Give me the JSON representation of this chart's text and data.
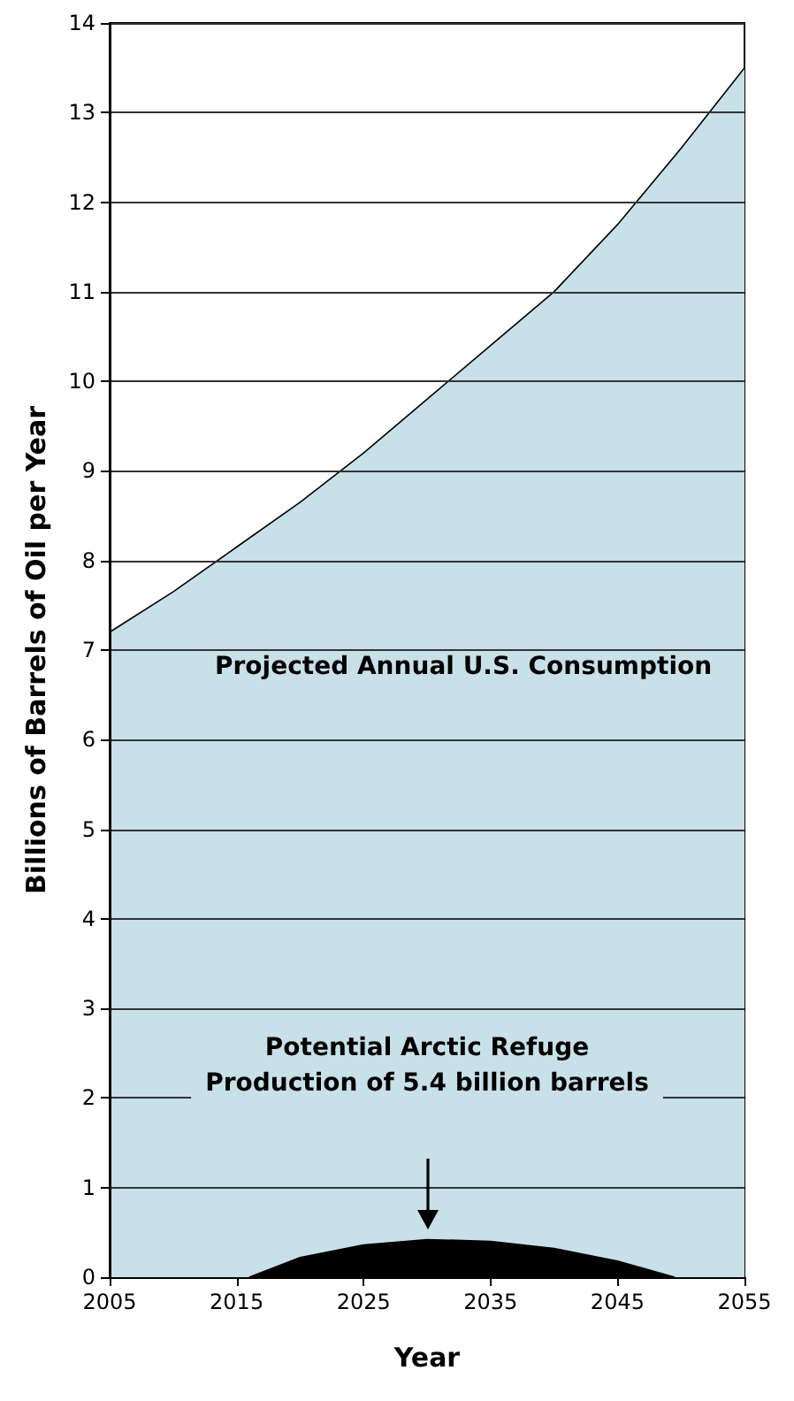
{
  "chart_data": {
    "type": "area",
    "xlabel": "Year",
    "ylabel": "Billions of Barrels of Oil per Year",
    "series": [
      {
        "color": "#c8e0e8",
        "x": [
          2005,
          2010,
          2015,
          2020,
          2025,
          2030,
          2035,
          2040,
          2045,
          2050,
          2055
        ],
        "values": [
          7.2,
          7.65,
          8.15,
          8.65,
          9.2,
          9.8,
          10.4,
          11.0,
          11.75,
          12.6,
          13.5
        ]
      },
      {
        "color": "#000000",
        "x": [
          2016,
          2020,
          2025,
          2030,
          2035,
          2040,
          2045,
          2049.5
        ],
        "values": [
          0,
          0.22,
          0.36,
          0.42,
          0.4,
          0.32,
          0.18,
          0
        ]
      }
    ],
    "annotations": [
      "Projected Annual U.S. Consumption",
      "Potential Arctic Refuge\nProduction of 5.4 billion barrels"
    ],
    "xlim": [
      2005,
      2055
    ],
    "xticks": [
      2005,
      2015,
      2025,
      2035,
      2045,
      2055
    ],
    "ylim": [
      0,
      14
    ],
    "yticks": [
      0,
      1,
      2,
      3,
      4,
      5,
      6,
      7,
      8,
      9,
      10,
      11,
      12,
      13,
      14
    ],
    "grid": "y"
  }
}
